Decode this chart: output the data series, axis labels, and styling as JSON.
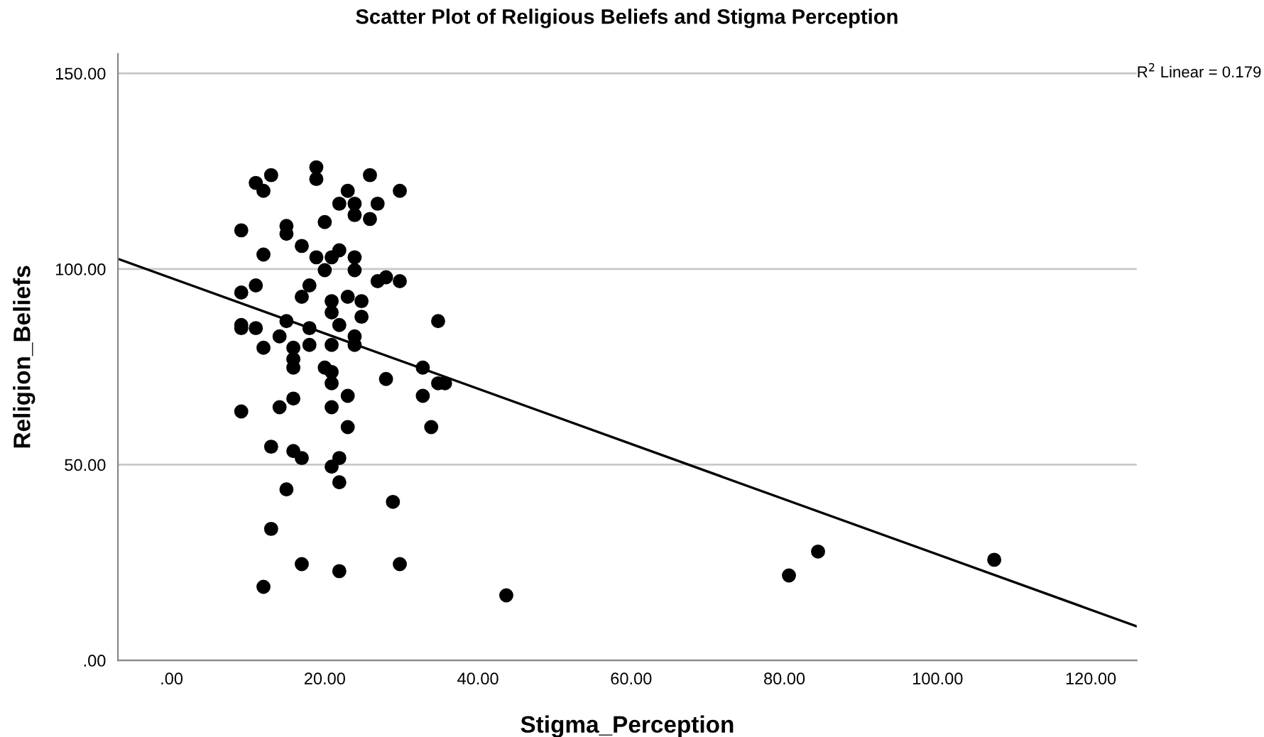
{
  "chart_data": {
    "type": "scatter",
    "title": "Scatter Plot of Religious Beliefs and Stigma Perception",
    "xlabel": "Stigma_Perception",
    "ylabel": "Religion_Beliefs",
    "xlim": [
      -7,
      126
    ],
    "ylim": [
      0,
      155
    ],
    "xticks": [
      {
        "value": 0,
        "label": ".00"
      },
      {
        "value": 20,
        "label": "20.00"
      },
      {
        "value": 40,
        "label": "40.00"
      },
      {
        "value": 60,
        "label": "60.00"
      },
      {
        "value": 80,
        "label": "80.00"
      },
      {
        "value": 100,
        "label": "100.00"
      },
      {
        "value": 120,
        "label": "120.00"
      }
    ],
    "yticks": [
      {
        "value": 0,
        "label": ".00"
      },
      {
        "value": 50,
        "label": "50.00"
      },
      {
        "value": 100,
        "label": "100.00"
      },
      {
        "value": 150,
        "label": "150.00"
      }
    ],
    "grid": "y",
    "marker": "circle",
    "annotations": [
      "R$^{2}$ Linear = 0.179"
    ],
    "series": [
      {
        "color": "#000000",
        "x": [
          18.9,
          13,
          11,
          18.9,
          25.9,
          12,
          23,
          29.8,
          21.9,
          23.9,
          26.9,
          23.9,
          25.9,
          20,
          9.1,
          15,
          15,
          17,
          21.9,
          12,
          18.9,
          20.9,
          23.9,
          20,
          23.9,
          26.9,
          28,
          29.8,
          9.1,
          11,
          18,
          17,
          20.9,
          23,
          24.8,
          20.9,
          24.8,
          21.9,
          34.8,
          9.1,
          9.1,
          11,
          15,
          18,
          14.1,
          23.9,
          12,
          15.9,
          18,
          20.9,
          23.9,
          15.9,
          15.9,
          20,
          20.9,
          32.8,
          28,
          20.9,
          34.8,
          35.7,
          23,
          32.8,
          15.9,
          9.1,
          14.1,
          20.9,
          23,
          33.9,
          13,
          15.9,
          17,
          21.9,
          20.9,
          21.9,
          15,
          28.9,
          13,
          17,
          29.8,
          21.9,
          12,
          43.7,
          80.6,
          84.4,
          107.4
        ],
        "values": [
          126,
          124,
          122,
          123,
          124,
          120,
          120,
          120,
          116.7,
          116.7,
          116.7,
          113.8,
          112.8,
          112,
          109.9,
          111,
          109,
          105.9,
          104.8,
          103.7,
          103,
          103,
          103,
          99.7,
          99.7,
          96.9,
          97.9,
          96.9,
          94,
          95.8,
          95.8,
          92.9,
          91.8,
          92.9,
          91.8,
          88.9,
          87.8,
          85.7,
          86.7,
          85.7,
          84.9,
          84.9,
          86.7,
          84.9,
          82.8,
          82.8,
          79.9,
          79.9,
          80.6,
          80.6,
          80.6,
          77,
          74.8,
          74.8,
          73.7,
          74.8,
          71.9,
          70.8,
          70.8,
          70.8,
          67.6,
          67.6,
          66.9,
          63.6,
          64.7,
          64.7,
          59.6,
          59.6,
          54.6,
          53.5,
          51.7,
          51.7,
          49.5,
          45.5,
          43.7,
          40.5,
          33.6,
          24.6,
          24.6,
          22.8,
          18.8,
          16.6,
          21.7,
          27.8,
          25.7
        ]
      },
      {
        "type": "line",
        "color": "#000000",
        "marker": "none",
        "line_style": "solid",
        "x": [
          -7,
          126
        ],
        "values": [
          102.6,
          8.7
        ]
      }
    ]
  }
}
